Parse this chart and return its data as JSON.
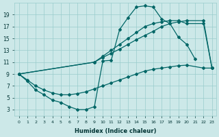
{
  "xlabel": "Humidex (Indice chaleur)",
  "bg_color": "#cce8e8",
  "grid_color": "#99cccc",
  "line_color": "#006666",
  "xlim": [
    -0.5,
    23.5
  ],
  "ylim": [
    2,
    21
  ],
  "curve1_x": [
    0,
    1,
    2,
    3,
    4,
    5,
    6,
    7,
    8,
    9,
    10,
    11,
    12,
    13,
    14,
    15,
    16,
    17,
    18,
    19,
    20,
    21
  ],
  "curve1_y": [
    9,
    7.8,
    6.3,
    5.5,
    4.6,
    4.2,
    3.5,
    3.0,
    3.0,
    3.5,
    11.2,
    11.3,
    16.5,
    18.5,
    20.3,
    20.5,
    20.3,
    18.3,
    17.5,
    15.2,
    14.0,
    11.5
  ],
  "curve2_x": [
    0,
    9,
    10,
    11,
    12,
    13,
    14,
    15,
    16,
    17,
    18,
    19,
    20,
    22,
    23
  ],
  "curve2_y": [
    9,
    11.0,
    12.0,
    13.0,
    14.0,
    15.0,
    16.0,
    17.0,
    17.5,
    17.8,
    18.0,
    18.0,
    17.5,
    17.5,
    10.0
  ],
  "curve3_x": [
    0,
    9,
    10,
    11,
    12,
    13,
    14,
    15,
    16,
    17,
    18,
    19,
    20,
    22,
    23
  ],
  "curve3_y": [
    9,
    11.0,
    11.8,
    12.5,
    13.2,
    14.0,
    14.8,
    15.5,
    16.2,
    17.0,
    17.5,
    17.8,
    18.0,
    18.0,
    10.0
  ],
  "curve4_x": [
    0,
    1,
    2,
    3,
    4,
    5,
    6,
    7,
    8,
    9,
    10,
    11,
    12,
    13,
    14,
    15,
    16,
    17,
    18,
    19,
    20,
    22,
    23
  ],
  "curve4_y": [
    9,
    8.0,
    7.0,
    6.3,
    5.8,
    5.5,
    5.5,
    5.7,
    6.0,
    6.5,
    7.0,
    7.5,
    8.0,
    8.5,
    9.0,
    9.5,
    9.8,
    10.0,
    10.2,
    10.4,
    10.5,
    10.0,
    10.0
  ]
}
